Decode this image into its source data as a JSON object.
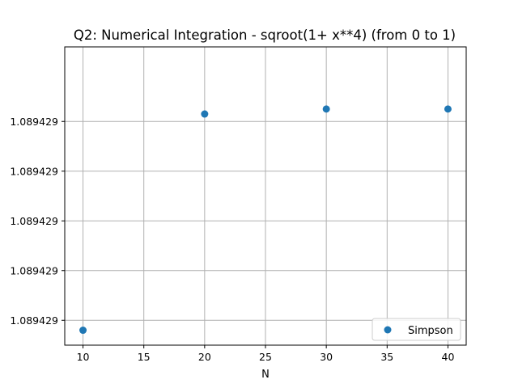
{
  "chart_data": {
    "type": "scatter",
    "title": "Q2: Numerical Integration - sqroot(1+ x**4) (from 0 to 1)",
    "xlabel": "N",
    "ylabel": "",
    "xlim": [
      8.5,
      41.5
    ],
    "x_ticks": [
      10,
      15,
      20,
      25,
      30,
      35,
      40
    ],
    "ylim": [
      1.0894286,
      1.0894298
    ],
    "y_ticks": [
      1.0894287,
      1.0894289,
      1.0894291,
      1.0894293,
      1.0894295
    ],
    "y_tick_labels": [
      "1.089429",
      "1.089429",
      "1.089429",
      "1.089429",
      "1.089429"
    ],
    "grid": true,
    "legend_position": "bottom-right",
    "series": [
      {
        "name": "Simpson",
        "color": "#1f77b4",
        "x": [
          10,
          20,
          30,
          40
        ],
        "y": [
          1.08942866,
          1.08942953,
          1.08942955,
          1.08942955
        ]
      }
    ]
  }
}
